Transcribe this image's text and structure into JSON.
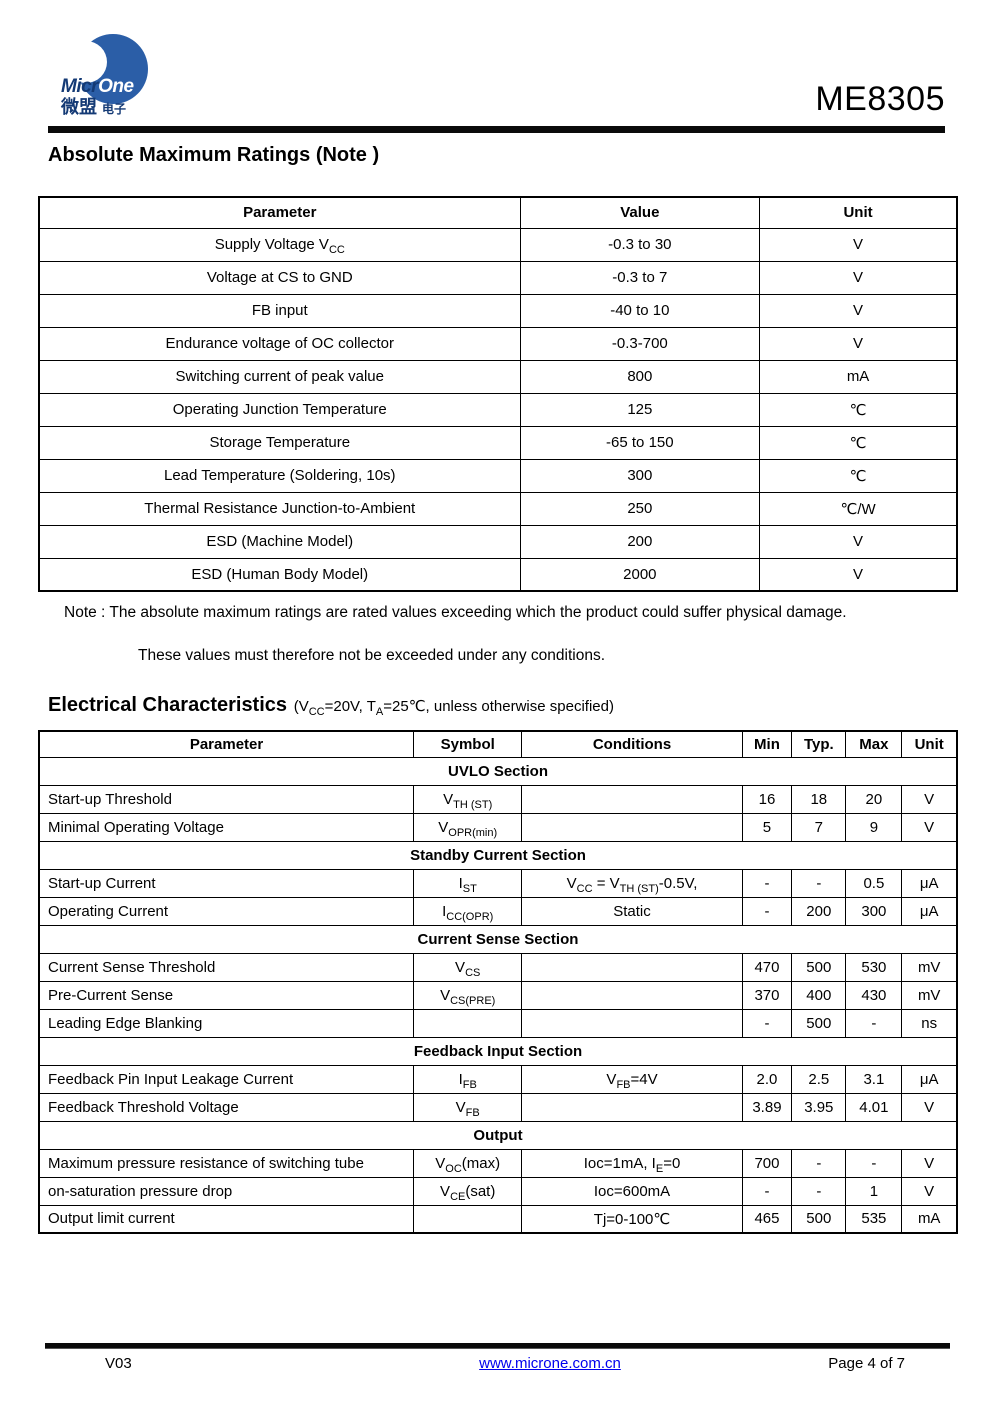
{
  "colors": {
    "logo_blue": "#2b5ea7",
    "logo_navy": "#143a75",
    "link_blue": "#0000ee"
  },
  "header": {
    "product": "ME8305",
    "logo": {
      "brand_micr": "Micr",
      "brand_one": "One",
      "brand_cn_main": "微盟",
      "brand_cn_sub": "电子"
    }
  },
  "abs_max": {
    "title": "Absolute Maximum Ratings (Note )",
    "columns": [
      "Parameter",
      "Value",
      "Unit"
    ],
    "rows": [
      [
        "Supply Voltage V~CC~",
        "-0.3 to 30",
        "V"
      ],
      [
        "Voltage at CS to GND",
        "-0.3 to 7",
        "V"
      ],
      [
        "FB input",
        "-40 to 10",
        "V"
      ],
      [
        "Endurance voltage of OC collector",
        "-0.3-700",
        "V"
      ],
      [
        "Switching current of peak value",
        "800",
        "mA"
      ],
      [
        "Operating Junction Temperature",
        "125",
        "℃"
      ],
      [
        "Storage Temperature",
        "-65 to 150",
        "℃"
      ],
      [
        "Lead Temperature (Soldering, 10s)",
        "300",
        "℃"
      ],
      [
        "Thermal Resistance Junction-to-Ambient",
        "250",
        "℃/W"
      ],
      [
        "ESD (Machine Model)",
        "200",
        "V"
      ],
      [
        "ESD (Human Body Model)",
        "2000",
        "V"
      ]
    ],
    "notes": [
      "Note : The absolute maximum ratings are rated values exceeding which the product could suffer physical damage.",
      "These values must therefore not be exceeded under any conditions."
    ]
  },
  "ec": {
    "title": "Electrical Characteristics",
    "subtitle": "(V~CC~=20V, T~A~=25℃, unless otherwise specified)",
    "columns": [
      "Parameter",
      "Symbol",
      "Conditions",
      "Min",
      "Typ.",
      "Max",
      "Unit"
    ],
    "rows": [
      {
        "section": "UVLO Section"
      },
      {
        "cells": [
          "Start-up Threshold",
          "V~TH (ST)~",
          "",
          "16",
          "18",
          "20",
          "V"
        ]
      },
      {
        "cells": [
          "Minimal Operating Voltage",
          "V~OPR(min)~",
          "",
          "5",
          "7",
          "9",
          "V"
        ]
      },
      {
        "section": "Standby Current Section"
      },
      {
        "cells": [
          "Start-up Current",
          "I~ST~",
          "V~CC~ = V~TH (ST)~-0.5V,",
          "-",
          "-",
          "0.5",
          "μA"
        ]
      },
      {
        "cells": [
          "Operating Current",
          "I~CC(OPR)~",
          "Static",
          "-",
          "200",
          "300",
          "μA"
        ]
      },
      {
        "section": "Current Sense Section"
      },
      {
        "cells": [
          "Current Sense Threshold",
          "V~CS~",
          "",
          "470",
          "500",
          "530",
          "mV"
        ]
      },
      {
        "cells": [
          "Pre-Current Sense",
          "V~CS(PRE)~",
          "",
          "370",
          "400",
          "430",
          "mV"
        ]
      },
      {
        "cells": [
          "Leading Edge Blanking",
          "",
          "",
          "-",
          "500",
          "-",
          "ns"
        ]
      },
      {
        "section": "Feedback Input Section"
      },
      {
        "cells": [
          "Feedback Pin Input Leakage Current",
          "I~FB~",
          "V~FB~=4V",
          "2.0",
          "2.5",
          "3.1",
          "μA"
        ]
      },
      {
        "cells": [
          "Feedback Threshold Voltage",
          "V~FB~",
          "",
          "3.89",
          "3.95",
          "4.01",
          "V"
        ]
      },
      {
        "section": "Output"
      },
      {
        "cells": [
          "Maximum pressure resistance of switching tube",
          "V~OC~(max)",
          "Ioc=1mA, I~E~=0",
          "700",
          "-",
          "-",
          "V"
        ]
      },
      {
        "cells": [
          "on-saturation pressure drop",
          "V~CE~(sat)",
          "Ioc=600mA",
          "-",
          "-",
          "1",
          "V"
        ]
      },
      {
        "cells": [
          "Output limit current",
          "",
          "Tj=0-100℃",
          "465",
          "500",
          "535",
          "mA"
        ]
      }
    ]
  },
  "footer": {
    "version": "V03",
    "link": "www.microne.com.cn",
    "page": "Page 4 of 7"
  }
}
